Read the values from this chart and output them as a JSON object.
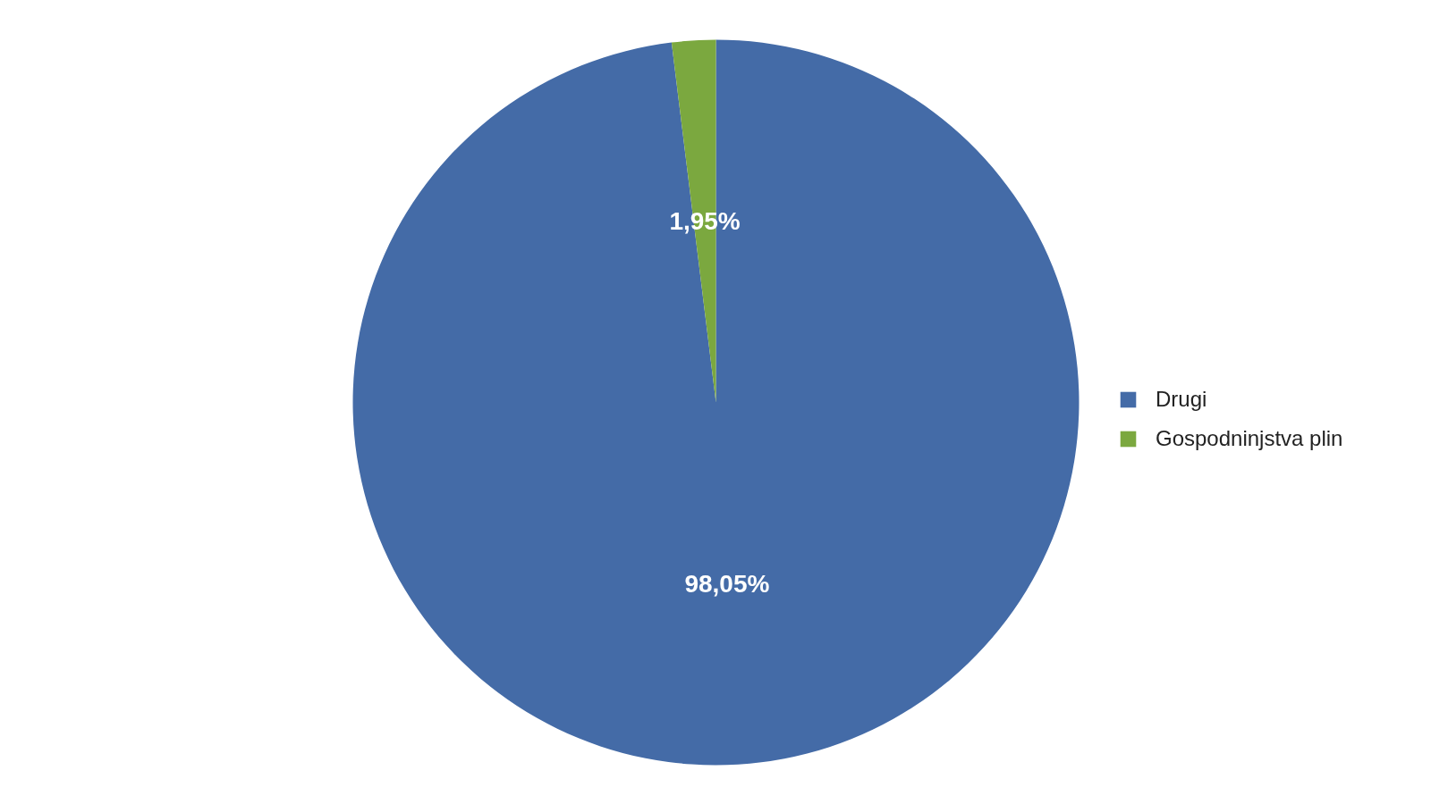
{
  "chart_data": {
    "type": "pie",
    "categories": [
      "Drugi",
      "Gospodninjstva plin"
    ],
    "values": [
      98.05,
      1.95
    ],
    "colors": [
      "#446ba7",
      "#7ba83f"
    ],
    "value_labels": [
      "98,05%",
      "1,95%"
    ],
    "legend": "right"
  }
}
